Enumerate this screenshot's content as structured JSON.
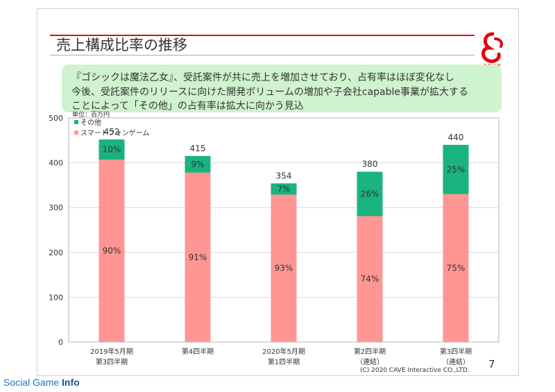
{
  "slide": {
    "title": "売上構成比率の推移",
    "logo_text": "cave",
    "callout": [
      "『ゴシックは魔法乙女』、受託案件が共に売上を増加させており、占有率はほぼ変化なし",
      "今後、受託案件のリリースに向けた開発ボリュームの増加や子会社capable事業が拡大する",
      "ことによって「その他」の占有率は拡大に向かう見込"
    ],
    "page_number": "7",
    "copyright": "(C) 2020 CAVE Interactive CO.,LTD."
  },
  "watermark": {
    "part1": "Social Game",
    "part2": "Info"
  },
  "colors": {
    "brand_red": "#e60012",
    "other": "#19b37e",
    "smartphone": "#ff9694",
    "callout_bg": "#cff2cf"
  },
  "chart_data": {
    "type": "bar",
    "stacked": true,
    "unit_label": "単位：百万円",
    "categories": [
      [
        "2019年5月期",
        "第3四半期"
      ],
      [
        "第4四半期"
      ],
      [
        "2020年5月期",
        "第1四半期"
      ],
      [
        "第2四半期",
        "（連結）"
      ],
      [
        "第3四半期",
        "（連結）"
      ]
    ],
    "totals": [
      452,
      415,
      354,
      380,
      440
    ],
    "series": [
      {
        "name": "スマートフォンゲーム",
        "color": "#ff9694",
        "values": [
          407,
          378,
          329,
          281,
          330
        ],
        "pct_labels": [
          "90%",
          "91%",
          "93%",
          "74%",
          "75%"
        ]
      },
      {
        "name": "その他",
        "color": "#19b37e",
        "values": [
          45,
          37,
          25,
          99,
          110
        ],
        "pct_labels": [
          "10%",
          "9%",
          "7%",
          "26%",
          "25%"
        ]
      }
    ],
    "yticks": [
      "0",
      "100",
      "200",
      "300",
      "400",
      "500"
    ],
    "ylim": [
      0,
      500
    ],
    "legend_position": "top-left",
    "grid": true
  }
}
